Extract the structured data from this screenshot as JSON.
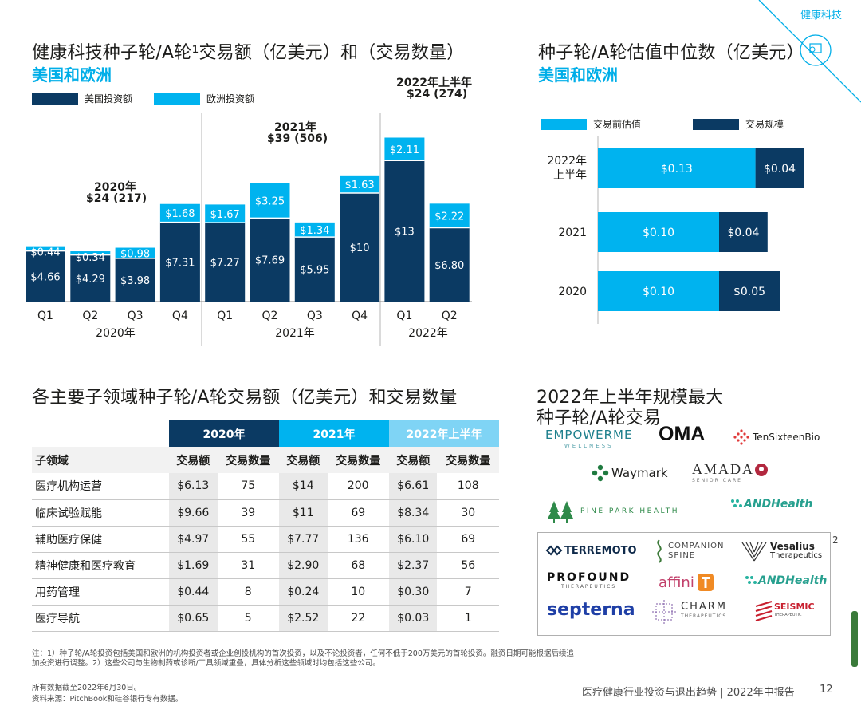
{
  "corner_label": "健康科技",
  "chart1": {
    "title": "健康科技种子轮/A轮¹交易额（亿美元）和（交易数量）",
    "subtitle": "美国和欧洲",
    "legend": [
      {
        "label": "美国投资额",
        "color": "#0b3a63"
      },
      {
        "label": "欧洲投资额",
        "color": "#00b3ef"
      }
    ],
    "year_annotations": [
      {
        "year": "2020年",
        "value": "$24 (217)"
      },
      {
        "year": "2021年",
        "value": "$39 (506)"
      },
      {
        "year": "2022年上半年",
        "value": "$24 (274)"
      }
    ]
  },
  "chart2": {
    "title": "种子轮/A轮估值中位数（亿美元）",
    "subtitle": "美国和欧洲",
    "legend": [
      {
        "label": "交易前估值",
        "color": "#00b3ef"
      },
      {
        "label": "交易规模",
        "color": "#0b3a63"
      }
    ]
  },
  "chart_data": [
    {
      "type": "bar",
      "stacked": true,
      "categories": [
        "Q1",
        "Q2",
        "Q3",
        "Q4",
        "Q1",
        "Q2",
        "Q3",
        "Q4",
        "Q1",
        "Q2"
      ],
      "groups": [
        "2020年",
        "2021年",
        "2022年"
      ],
      "series": [
        {
          "name": "美国投资额",
          "color": "#0b3a63",
          "values": [
            4.66,
            4.29,
            3.98,
            7.31,
            7.27,
            7.69,
            5.95,
            10,
            13,
            6.8
          ],
          "labels": [
            "$4.66",
            "$4.29",
            "$3.98",
            "$7.31",
            "$7.27",
            "$7.69",
            "$5.95",
            "$10",
            "$13",
            "$6.80"
          ]
        },
        {
          "name": "欧洲投资额",
          "color": "#00b3ef",
          "values": [
            0.44,
            0.34,
            0.98,
            1.68,
            1.67,
            3.25,
            1.34,
            1.63,
            2.11,
            2.22
          ],
          "labels": [
            "$0.44",
            "$0.34",
            "$0.98",
            "$1.68",
            "$1.67",
            "$3.25",
            "$1.34",
            "$1.63",
            "$2.11",
            "$2.22"
          ]
        }
      ],
      "ylim": [
        0,
        16
      ]
    },
    {
      "type": "bar",
      "orientation": "horizontal",
      "stacked": true,
      "categories": [
        "2022年上半年",
        "2021",
        "2020"
      ],
      "series": [
        {
          "name": "交易前估值",
          "color": "#00b3ef",
          "values": [
            0.13,
            0.1,
            0.1
          ],
          "labels": [
            "$0.13",
            "$0.10",
            "$0.10"
          ]
        },
        {
          "name": "交易规模",
          "color": "#0b3a63",
          "values": [
            0.04,
            0.04,
            0.05
          ],
          "labels": [
            "$0.04",
            "$0.04",
            "$0.05"
          ]
        }
      ],
      "xlim": [
        0,
        0.18
      ]
    }
  ],
  "table": {
    "title": "各主要子领域种子轮/A轮交易额（亿美元）和交易数量",
    "year_headers": [
      {
        "label": "2020年",
        "color": "#0b3a63"
      },
      {
        "label": "2021年",
        "color": "#00b3ef"
      },
      {
        "label": "2022年上半年",
        "color": "#7fd4f5"
      }
    ],
    "columns": [
      "子领域",
      "交易额",
      "交易数量",
      "交易额",
      "交易数量",
      "交易额",
      "交易数量"
    ],
    "rows": [
      [
        "医疗机构运营",
        "$6.13",
        "75",
        "$14",
        "200",
        "$6.61",
        "108"
      ],
      [
        "临床试验赋能",
        "$9.66",
        "39",
        "$11",
        "69",
        "$8.34",
        "30"
      ],
      [
        "辅助医疗保健",
        "$4.97",
        "55",
        "$7.77",
        "136",
        "$6.10",
        "69"
      ],
      [
        "精神健康和医疗教育",
        "$1.69",
        "31",
        "$2.90",
        "68",
        "$2.37",
        "56"
      ],
      [
        "用药管理",
        "$0.44",
        "8",
        "$0.24",
        "10",
        "$0.30",
        "7"
      ],
      [
        "医疗导航",
        "$0.65",
        "5",
        "$2.52",
        "22",
        "$0.03",
        "1"
      ]
    ]
  },
  "deals": {
    "title_line1": "2022年上半年规模最大",
    "title_line2": "种子轮/A轮交易",
    "footnote_marker": "2",
    "logos": {
      "empowerme": "EMPOWERME",
      "empowerme_sub": "WELLNESS",
      "oma": "OMA",
      "tensixteen": "TenSixteenBio",
      "waymark": "Waymark",
      "amada": "AMADA",
      "amada_sub": "SENIOR CARE",
      "pinepark": "PINE PARK HEALTH",
      "andhealth": "ANDHealth",
      "terremoto": "TERREMOTO",
      "companion_1": "COMPANION",
      "companion_2": "SPINE",
      "vesalius_1": "Vesalius",
      "vesalius_2": "Therapeutics",
      "profound": "PROFOUND",
      "profound_sub": "THERAPEUTICS",
      "affini": "affini",
      "andhealth2": "ANDHealth",
      "septerna": "septerna",
      "charm": "CHARM",
      "charm_sub": "THERAPEUTICS",
      "seismic": "SEISMIC",
      "seismic_sub": "THERAPEUTIC"
    }
  },
  "footer": {
    "note": "注：1）种子轮/A轮投资包括美国和欧洲的机构投资者或企业创投机构的首次投资，以及不论投资者，任何不低于200万美元的首轮投资。融资日期可能根据后续追加投资进行调整。2）这些公司与生物制药或诊断/工具领域重叠，具体分析这些领域时均包括这些公司。",
    "data_date": "所有数据截至2022年6月30日。",
    "source": "资料来源：PitchBook和硅谷银行专有数据。",
    "report": "医疗健康行业投资与退出趋势 | 2022年中报告",
    "page": "12"
  }
}
